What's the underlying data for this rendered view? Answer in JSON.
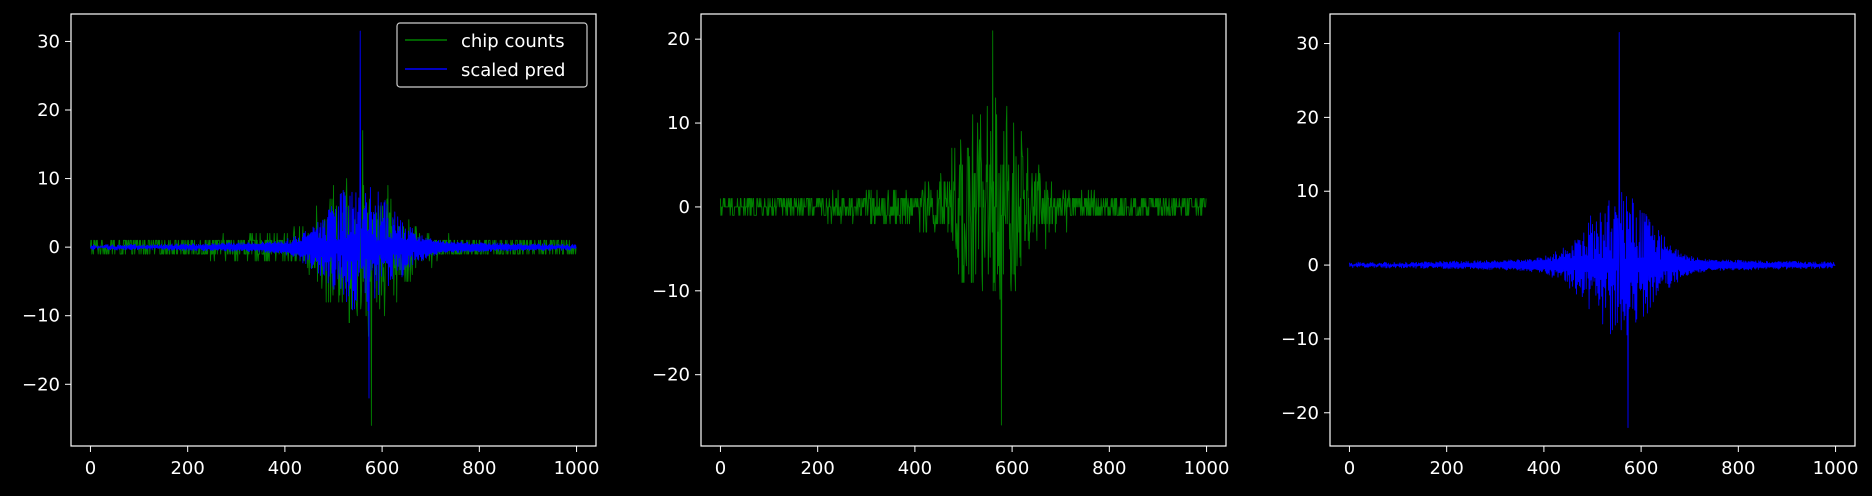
{
  "figure": {
    "background": "#000000",
    "axis_color": "#ffffff"
  },
  "colors": {
    "chip": "#008000",
    "pred": "#0000ff"
  },
  "chart_data": [
    {
      "type": "line",
      "title": "",
      "xlabel": "",
      "ylabel": "",
      "xlim": [
        -40,
        1040
      ],
      "ylim": [
        -29,
        34
      ],
      "xticks": [
        0,
        200,
        400,
        600,
        800,
        1000
      ],
      "yticks": [
        -20,
        -10,
        0,
        10,
        20,
        30
      ],
      "legend": {
        "placement": "top-right",
        "entries": [
          "chip counts",
          "scaled pred"
        ]
      },
      "series": [
        {
          "name": "chip counts",
          "color": "#008000",
          "n_points": 1000,
          "center": 560,
          "spike_up": 17,
          "spike_down": -26,
          "noise_amp": 3
        },
        {
          "name": "scaled pred",
          "color": "#0000ff",
          "n_points": 1000,
          "center": 555,
          "spike_up": 31.5,
          "spike_down": -22,
          "noise_amp": 0.5
        }
      ]
    },
    {
      "type": "line",
      "title": "",
      "xlabel": "",
      "ylabel": "",
      "xlim": [
        -40,
        1040
      ],
      "ylim": [
        -28.5,
        23
      ],
      "xticks": [
        0,
        200,
        400,
        600,
        800,
        1000
      ],
      "yticks": [
        -20,
        -10,
        0,
        10,
        20
      ],
      "series": [
        {
          "color": "#008000",
          "n_points": 1000,
          "center": 560,
          "spike_up": 21,
          "spike_down": -26,
          "noise_amp": 3
        }
      ]
    },
    {
      "type": "line",
      "title": "",
      "xlabel": "",
      "ylabel": "",
      "xlim": [
        -40,
        1040
      ],
      "ylim": [
        -24.5,
        34
      ],
      "xticks": [
        0,
        200,
        400,
        600,
        800,
        1000
      ],
      "yticks": [
        -20,
        -10,
        0,
        10,
        20,
        30
      ],
      "series": [
        {
          "color": "#0000ff",
          "n_points": 1000,
          "center": 555,
          "spike_up": 31.5,
          "spike_down": -22,
          "noise_amp": 0.5
        }
      ]
    }
  ]
}
